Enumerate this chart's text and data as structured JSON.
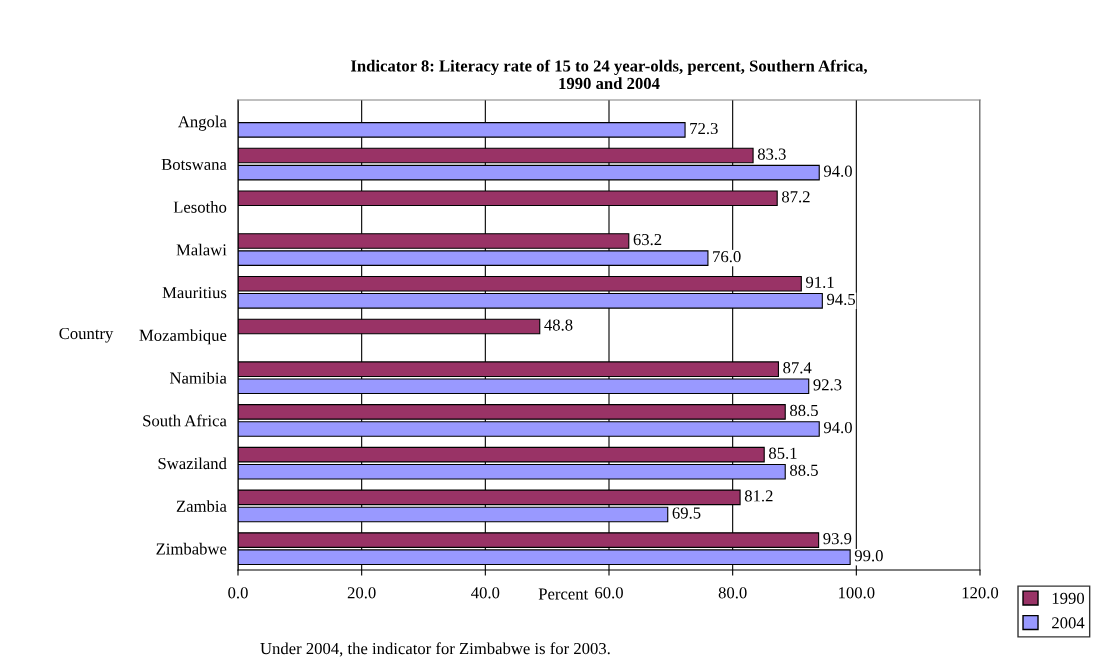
{
  "chart_data": {
    "type": "bar",
    "orientation": "horizontal",
    "title": "Indicator 8: Literacy rate of 15 to 24 year-olds, percent, Southern Africa,\n1990 and 2004",
    "xlabel": "Percent",
    "ylabel": "Country",
    "categories": [
      "Angola",
      "Botswana",
      "Lesotho",
      "Malawi",
      "Mauritius",
      "Mozambique",
      "Namibia",
      "South Africa",
      "Swaziland",
      "Zambia",
      "Zimbabwe"
    ],
    "series": [
      {
        "name": "1990",
        "color": "#993366",
        "values": [
          null,
          83.3,
          87.2,
          63.2,
          91.1,
          48.8,
          87.4,
          88.5,
          85.1,
          81.2,
          93.9
        ],
        "value_labels": [
          null,
          "83.3",
          "87.2",
          "63.2",
          "91.1",
          "48.8",
          "87.4",
          "88.5",
          "85.1",
          "81.2",
          "93.9"
        ]
      },
      {
        "name": "2004",
        "color": "#9999ff",
        "values": [
          72.3,
          94.0,
          null,
          76.0,
          94.5,
          null,
          92.3,
          94.0,
          88.5,
          69.5,
          99.0
        ],
        "value_labels": [
          "72.3",
          "94.0",
          null,
          "76.0",
          "94.5",
          null,
          "92.3",
          "94.0",
          "88.5",
          "69.5",
          "99.0"
        ]
      }
    ],
    "xlim": [
      0,
      120
    ],
    "xticks": [
      {
        "value": 0,
        "label": "0.0"
      },
      {
        "value": 20,
        "label": "20.0"
      },
      {
        "value": 40,
        "label": "40.0"
      },
      {
        "value": 60,
        "label": "60.0"
      },
      {
        "value": 80,
        "label": "80.0"
      },
      {
        "value": 100,
        "label": "100.0"
      },
      {
        "value": 120,
        "label": "120.0"
      }
    ],
    "grid": "x",
    "legend": "right",
    "annotations": [
      "Under 2004, the indicator for Zimbabwe is for 2003."
    ]
  }
}
